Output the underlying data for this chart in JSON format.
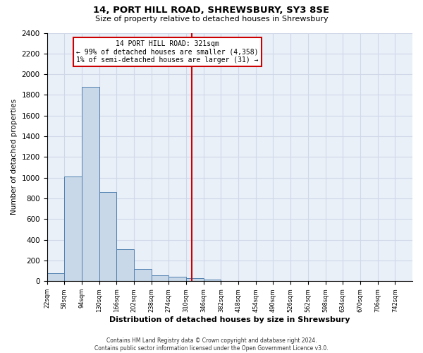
{
  "title1": "14, PORT HILL ROAD, SHREWSBURY, SY3 8SE",
  "title2": "Size of property relative to detached houses in Shrewsbury",
  "xlabel": "Distribution of detached houses by size in Shrewsbury",
  "ylabel": "Number of detached properties",
  "footer1": "Contains HM Land Registry data © Crown copyright and database right 2024.",
  "footer2": "Contains public sector information licensed under the Open Government Licence v3.0.",
  "bin_edges": [
    22,
    58,
    94,
    130,
    166,
    202,
    238,
    274,
    310,
    346,
    382,
    418,
    454,
    490,
    526,
    562,
    598,
    634,
    670,
    706,
    742
  ],
  "bar_heights": [
    80,
    1010,
    1880,
    860,
    310,
    120,
    55,
    40,
    30,
    15,
    5,
    3,
    2,
    1,
    1,
    0,
    0,
    0,
    0,
    0
  ],
  "bar_color": "#c8d8e8",
  "bar_edge_color": "#5080b0",
  "grid_color": "#d0d8e8",
  "vline_x": 321,
  "vline_color": "#cc0000",
  "annotation_line1": "14 PORT HILL ROAD: 321sqm",
  "annotation_line2": "← 99% of detached houses are smaller (4,358)",
  "annotation_line3": "1% of semi-detached houses are larger (31) →",
  "annotation_box_color": "#cc0000",
  "ylim": [
    0,
    2400
  ],
  "yticks": [
    0,
    200,
    400,
    600,
    800,
    1000,
    1200,
    1400,
    1600,
    1800,
    2000,
    2200,
    2400
  ],
  "bg_color": "#eaf0f8"
}
